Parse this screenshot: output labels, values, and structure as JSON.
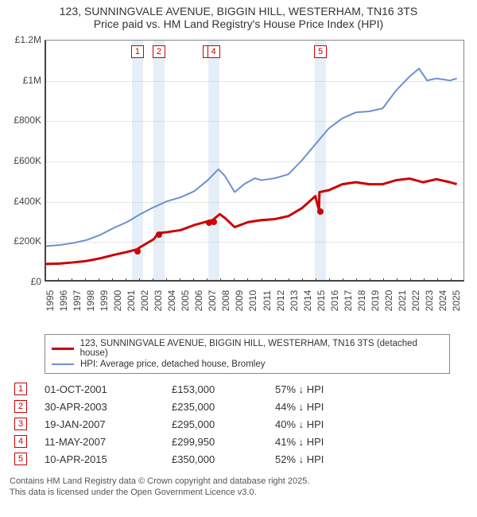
{
  "title": {
    "line1": "123, SUNNINGVALE AVENUE, BIGGIN HILL, WESTERHAM, TN16 3TS",
    "line2": "Price paid vs. HM Land Registry's House Price Index (HPI)"
  },
  "chart": {
    "type": "line",
    "background_color": "#ffffff",
    "grid_color": "#cccccc",
    "band_color": "#e6eef8",
    "axis_color": "#444444",
    "title_fontsize": 14,
    "label_fontsize": 12,
    "x": {
      "min": 1995,
      "max": 2026,
      "ticks": [
        1995,
        1996,
        1997,
        1998,
        1999,
        2000,
        2001,
        2002,
        2003,
        2004,
        2005,
        2006,
        2007,
        2008,
        2009,
        2010,
        2011,
        2012,
        2013,
        2014,
        2015,
        2016,
        2017,
        2018,
        2019,
        2020,
        2021,
        2022,
        2023,
        2024,
        2025
      ]
    },
    "y": {
      "min": 0,
      "max": 1200000,
      "ticks": [
        0,
        200000,
        400000,
        600000,
        800000,
        1000000,
        1200000
      ],
      "tick_labels": [
        "£0",
        "£200K",
        "£400K",
        "£600K",
        "£800K",
        "£1M",
        "£1.2M"
      ]
    },
    "series": [
      {
        "name": "HPI: Average price, detached house, Bromley",
        "color": "#6b8fd4",
        "width": 2,
        "points": [
          [
            1995,
            170000
          ],
          [
            1996,
            175000
          ],
          [
            1997,
            185000
          ],
          [
            1998,
            200000
          ],
          [
            1999,
            225000
          ],
          [
            2000,
            260000
          ],
          [
            2001,
            290000
          ],
          [
            2002,
            330000
          ],
          [
            2003,
            365000
          ],
          [
            2004,
            395000
          ],
          [
            2005,
            415000
          ],
          [
            2006,
            445000
          ],
          [
            2007,
            500000
          ],
          [
            2007.8,
            555000
          ],
          [
            2008.3,
            520000
          ],
          [
            2009,
            440000
          ],
          [
            2009.7,
            480000
          ],
          [
            2010.5,
            510000
          ],
          [
            2011,
            500000
          ],
          [
            2012,
            510000
          ],
          [
            2013,
            530000
          ],
          [
            2014,
            600000
          ],
          [
            2015,
            680000
          ],
          [
            2016,
            760000
          ],
          [
            2017,
            810000
          ],
          [
            2018,
            840000
          ],
          [
            2019,
            845000
          ],
          [
            2020,
            860000
          ],
          [
            2021,
            950000
          ],
          [
            2022,
            1020000
          ],
          [
            2022.7,
            1060000
          ],
          [
            2023.3,
            1000000
          ],
          [
            2024,
            1010000
          ],
          [
            2025,
            1000000
          ],
          [
            2025.5,
            1010000
          ]
        ]
      },
      {
        "name": "123, SUNNINGVALE AVENUE, BIGGIN HILL, WESTERHAM, TN16 3TS (detached house)",
        "color": "#cc0000",
        "width": 3,
        "points": [
          [
            1995,
            80000
          ],
          [
            1996,
            82000
          ],
          [
            1997,
            88000
          ],
          [
            1998,
            95000
          ],
          [
            1999,
            108000
          ],
          [
            2000,
            125000
          ],
          [
            2001,
            140000
          ],
          [
            2001.75,
            153000
          ],
          [
            2002,
            165000
          ],
          [
            2003,
            205000
          ],
          [
            2003.33,
            235000
          ],
          [
            2004,
            240000
          ],
          [
            2005,
            250000
          ],
          [
            2006,
            275000
          ],
          [
            2007.05,
            295000
          ],
          [
            2007.36,
            299950
          ],
          [
            2007.9,
            330000
          ],
          [
            2008.3,
            310000
          ],
          [
            2009,
            265000
          ],
          [
            2010,
            290000
          ],
          [
            2011,
            300000
          ],
          [
            2012,
            305000
          ],
          [
            2013,
            320000
          ],
          [
            2014,
            360000
          ],
          [
            2015,
            420000
          ],
          [
            2015.27,
            350000
          ],
          [
            2015.3,
            440000
          ],
          [
            2016,
            450000
          ],
          [
            2017,
            480000
          ],
          [
            2018,
            490000
          ],
          [
            2019,
            480000
          ],
          [
            2020,
            480000
          ],
          [
            2021,
            500000
          ],
          [
            2022,
            508000
          ],
          [
            2023,
            490000
          ],
          [
            2024,
            505000
          ],
          [
            2025,
            490000
          ],
          [
            2025.5,
            480000
          ]
        ]
      }
    ],
    "sale_markers": [
      {
        "n": "1",
        "year": 2001.75,
        "price": 153000,
        "band": true
      },
      {
        "n": "2",
        "year": 2003.33,
        "price": 235000,
        "band": true
      },
      {
        "n": "3",
        "year": 2007.05,
        "price": 295000,
        "band": false
      },
      {
        "n": "4",
        "year": 2007.36,
        "price": 299950,
        "band": true
      },
      {
        "n": "5",
        "year": 2015.27,
        "price": 350000,
        "band": true
      }
    ]
  },
  "legend": {
    "rows": [
      {
        "color": "#cc0000",
        "width": 3,
        "label": "123, SUNNINGVALE AVENUE, BIGGIN HILL, WESTERHAM, TN16 3TS (detached house)"
      },
      {
        "color": "#6b8fd4",
        "width": 2,
        "label": "HPI: Average price, detached house, Bromley"
      }
    ]
  },
  "sales_table": {
    "arrow_down": "↓",
    "hpi_suffix": "HPI",
    "rows": [
      {
        "n": "1",
        "date": "01-OCT-2001",
        "price": "£153,000",
        "diff": "57%"
      },
      {
        "n": "2",
        "date": "30-APR-2003",
        "price": "£235,000",
        "diff": "44%"
      },
      {
        "n": "3",
        "date": "19-JAN-2007",
        "price": "£295,000",
        "diff": "40%"
      },
      {
        "n": "4",
        "date": "11-MAY-2007",
        "price": "£299,950",
        "diff": "41%"
      },
      {
        "n": "5",
        "date": "10-APR-2015",
        "price": "£350,000",
        "diff": "52%"
      }
    ]
  },
  "footer": {
    "line1": "Contains HM Land Registry data © Crown copyright and database right 2025.",
    "line2": "This data is licensed under the Open Government Licence v3.0."
  }
}
